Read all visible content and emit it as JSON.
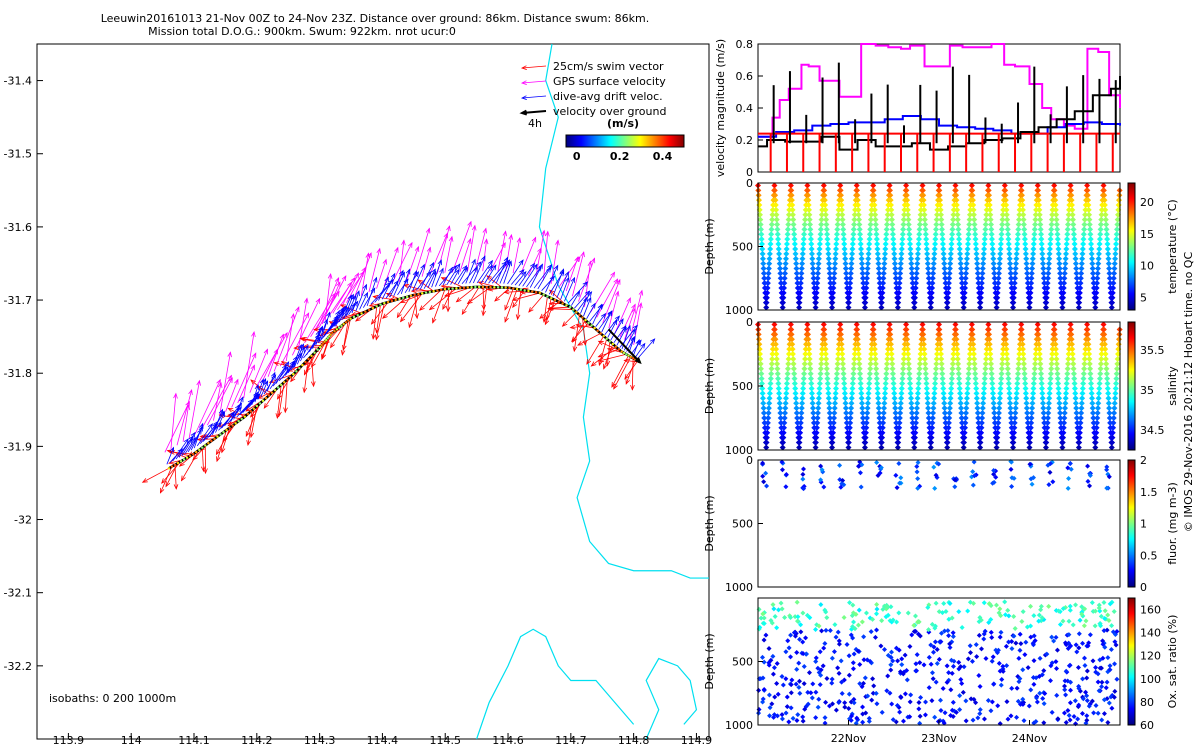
{
  "header": {
    "line1": "Leeuwin20161013 21-Nov 00Z to 24-Nov 23Z. Distance over ground: 86km. Distance swum: 86km.",
    "line2": "Mission total D.O.G.: 900km. Swum: 922km. nrot ucur:0"
  },
  "credit": "© IMOS 29-Nov-2016 20:21:12 Hobart time. no QC",
  "colors": {
    "swim": "#ff0000",
    "gps": "#ff00ff",
    "drift": "#0000ff",
    "vog": "#000000",
    "isobath": "#00e0f0",
    "track": "#000000"
  },
  "chart_data": [
    {
      "type": "vector-map",
      "xlim": [
        113.85,
        114.92
      ],
      "ylim": [
        -32.3,
        -31.35
      ],
      "x_ticks": [
        "113.9",
        "114",
        "114.1",
        "114.2",
        "114.3",
        "114.4",
        "114.5",
        "114.6",
        "114.7",
        "114.8",
        "114.9"
      ],
      "y_ticks": [
        "-31.4",
        "-31.5",
        "-31.6",
        "-31.7",
        "-31.8",
        "-31.9",
        "-32",
        "-32.1",
        "-32.2"
      ],
      "legend": [
        {
          "label": "25cm/s swim vector",
          "color": "#ff0000"
        },
        {
          "label": "GPS surface velocity",
          "color": "#ff00ff"
        },
        {
          "label": "dive-avg drift veloc.",
          "color": "#0000ff"
        },
        {
          "label": "velocity over ground",
          "color": "#000000"
        }
      ],
      "legend_interval": "4h",
      "colorbar": {
        "label": "(m/s)",
        "ticks": [
          "0",
          "0.2",
          "0.4"
        ],
        "range": [
          -0.05,
          0.5
        ]
      },
      "isobath_note": "isobaths: 0   200  1000m",
      "track": [
        [
          114.06,
          -31.93
        ],
        [
          114.1,
          -31.91
        ],
        [
          114.14,
          -31.885
        ],
        [
          114.18,
          -31.86
        ],
        [
          114.22,
          -31.83
        ],
        [
          114.26,
          -31.8
        ],
        [
          114.3,
          -31.765
        ],
        [
          114.32,
          -31.745
        ],
        [
          114.35,
          -31.725
        ],
        [
          114.4,
          -31.705
        ],
        [
          114.45,
          -31.693
        ],
        [
          114.5,
          -31.685
        ],
        [
          114.55,
          -31.682
        ],
        [
          114.6,
          -31.683
        ],
        [
          114.65,
          -31.69
        ],
        [
          114.7,
          -31.71
        ],
        [
          114.74,
          -31.74
        ],
        [
          114.78,
          -31.77
        ],
        [
          114.81,
          -31.785
        ]
      ],
      "vog_vector": {
        "from": [
          114.76,
          -31.74
        ],
        "to": [
          114.81,
          -31.785
        ]
      },
      "swim_dir_deg": 200,
      "drift_dir_deg": 60,
      "gps_dir_deg": 70,
      "isobaths": [
        [
          [
            114.67,
            -31.35
          ],
          [
            114.66,
            -31.4
          ],
          [
            114.68,
            -31.45
          ],
          [
            114.66,
            -31.52
          ],
          [
            114.65,
            -31.6
          ],
          [
            114.68,
            -31.68
          ],
          [
            114.72,
            -31.74
          ],
          [
            114.73,
            -31.8
          ],
          [
            114.72,
            -31.86
          ],
          [
            114.73,
            -31.92
          ],
          [
            114.71,
            -31.97
          ],
          [
            114.73,
            -32.03
          ],
          [
            114.76,
            -32.06
          ],
          [
            114.8,
            -32.07
          ],
          [
            114.86,
            -32.07
          ],
          [
            114.89,
            -32.08
          ],
          [
            114.92,
            -32.08
          ]
        ],
        [
          [
            114.55,
            -32.3
          ],
          [
            114.57,
            -32.25
          ],
          [
            114.6,
            -32.2
          ],
          [
            114.62,
            -32.16
          ],
          [
            114.64,
            -32.15
          ],
          [
            114.66,
            -32.16
          ],
          [
            114.68,
            -32.2
          ],
          [
            114.7,
            -32.22
          ],
          [
            114.74,
            -32.22
          ],
          [
            114.76,
            -32.24
          ],
          [
            114.78,
            -32.26
          ],
          [
            114.8,
            -32.28
          ]
        ],
        [
          [
            114.82,
            -32.3
          ],
          [
            114.84,
            -32.26
          ],
          [
            114.82,
            -32.22
          ],
          [
            114.84,
            -32.19
          ],
          [
            114.87,
            -32.2
          ],
          [
            114.89,
            -32.22
          ],
          [
            114.9,
            -32.26
          ],
          [
            114.88,
            -32.28
          ]
        ]
      ]
    },
    {
      "type": "line",
      "ylabel": "velocity magnitude (m/s)",
      "ylim": [
        0,
        0.8
      ],
      "y_ticks": [
        "0",
        "0.2",
        "0.4",
        "0.6",
        "0.8"
      ],
      "xlim": [
        0,
        4
      ],
      "series": [
        {
          "color": "#ff00ff",
          "x": [
            0,
            0.08,
            0.16,
            0.24,
            0.34,
            0.48,
            0.56,
            0.68,
            0.9,
            1.02,
            1.14,
            1.3,
            1.44,
            1.58,
            1.68,
            1.84,
            2.0,
            2.12,
            2.26,
            2.4,
            2.58,
            2.72,
            2.84,
            3.0,
            3.14,
            3.24,
            3.38,
            3.5,
            3.64,
            3.76,
            3.88,
            4.0
          ],
          "y": [
            0.22,
            0.22,
            0.34,
            0.45,
            0.52,
            0.67,
            0.66,
            0.57,
            0.47,
            0.47,
            0.8,
            0.79,
            0.78,
            0.77,
            0.79,
            0.66,
            0.66,
            0.79,
            0.78,
            0.78,
            0.8,
            0.67,
            0.66,
            0.55,
            0.4,
            0.33,
            0.29,
            0.27,
            0.77,
            0.75,
            0.48,
            0.4
          ]
        },
        {
          "color": "#0000ff",
          "x": [
            0,
            0.2,
            0.4,
            0.6,
            0.8,
            1.0,
            1.2,
            1.4,
            1.6,
            1.8,
            2.0,
            2.2,
            2.4,
            2.6,
            2.8,
            3.0,
            3.2,
            3.4,
            3.6,
            3.8,
            4.0
          ],
          "y": [
            0.22,
            0.25,
            0.26,
            0.29,
            0.3,
            0.31,
            0.31,
            0.33,
            0.35,
            0.33,
            0.29,
            0.28,
            0.27,
            0.26,
            0.24,
            0.24,
            0.28,
            0.3,
            0.31,
            0.3,
            0.29
          ]
        },
        {
          "color": "#ff0000",
          "x": [
            0,
            0.5,
            1.0,
            1.5,
            2.0,
            2.5,
            3.0,
            3.5,
            4.0
          ],
          "y": [
            0.24,
            0.24,
            0.24,
            0.24,
            0.24,
            0.24,
            0.24,
            0.24,
            0.24
          ]
        },
        {
          "color": "#000000",
          "x": [
            0,
            0.1,
            0.3,
            0.5,
            0.7,
            0.9,
            1.1,
            1.3,
            1.5,
            1.7,
            1.9,
            2.1,
            2.3,
            2.5,
            2.7,
            2.9,
            3.1,
            3.3,
            3.5,
            3.7,
            3.9,
            4.0
          ],
          "y": [
            0.16,
            0.2,
            0.19,
            0.19,
            0.22,
            0.14,
            0.2,
            0.16,
            0.16,
            0.18,
            0.14,
            0.16,
            0.18,
            0.2,
            0.21,
            0.25,
            0.28,
            0.33,
            0.38,
            0.48,
            0.52,
            0.6
          ]
        }
      ]
    },
    {
      "type": "scatter",
      "ylabel": "Depth (m)",
      "y_ticks": [
        "0",
        "500",
        "1000"
      ],
      "ylim": [
        1000,
        0
      ],
      "colorbar_label": "temperature (°C)",
      "colorbar_ticks": [
        "5",
        "10",
        "15",
        "20"
      ],
      "crange": [
        3,
        23
      ],
      "var": "temperature"
    },
    {
      "type": "scatter",
      "ylabel": "Depth (m)",
      "y_ticks": [
        "0",
        "500",
        "1000"
      ],
      "ylim": [
        1000,
        0
      ],
      "colorbar_label": "salinity",
      "colorbar_ticks": [
        "34.5",
        "35",
        "35.5"
      ],
      "crange": [
        34.25,
        35.85
      ],
      "var": "salinity"
    },
    {
      "type": "scatter",
      "ylabel": "Depth (m)",
      "y_ticks": [
        "0",
        "500",
        "1000"
      ],
      "ylim": [
        1000,
        0
      ],
      "colorbar_label": "fluor. (mg m-3)",
      "colorbar_ticks": [
        "0",
        "0.5",
        "1",
        "1.5",
        "2"
      ],
      "crange": [
        0,
        2
      ],
      "var": "fluor"
    },
    {
      "type": "scatter",
      "ylabel": "Depth (m)",
      "y_ticks": [
        "500",
        "1000"
      ],
      "ylim": [
        1000,
        0
      ],
      "colorbar_label": "Ox. sat. ratio (%)",
      "colorbar_ticks": [
        "60",
        "80",
        "100",
        "120",
        "140",
        "160"
      ],
      "crange": [
        60,
        170
      ],
      "var": "oxygen",
      "x_ticks": [
        "22Nov",
        "23Nov",
        "24Nov"
      ],
      "x_tick_positions_days": [
        1,
        2,
        3
      ]
    }
  ]
}
